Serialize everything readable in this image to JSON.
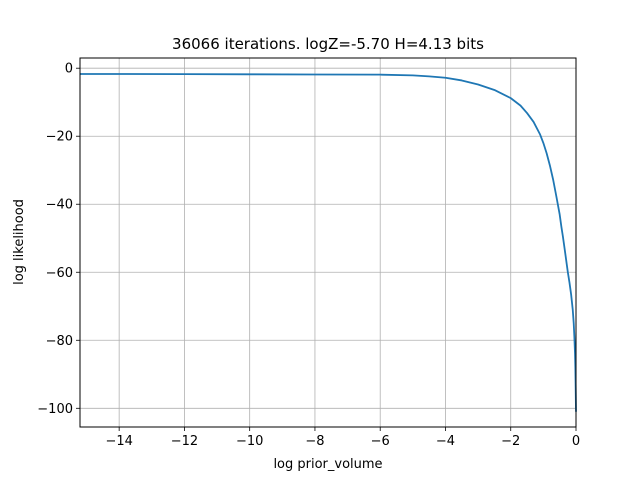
{
  "chart_data": {
    "type": "line",
    "title": "36066 iterations. logZ=-5.70 H=4.13 bits",
    "xlabel": "log prior_volume",
    "ylabel": "log likelihood",
    "xlim": [
      -15.2,
      0
    ],
    "ylim": [
      -105.5,
      3
    ],
    "x_ticks": [
      -14,
      -12,
      -10,
      -8,
      -6,
      -4,
      -2,
      0
    ],
    "y_ticks": [
      0,
      -20,
      -40,
      -60,
      -80,
      -100
    ],
    "x_tick_labels": [
      "−14",
      "−12",
      "−10",
      "−8",
      "−6",
      "−4",
      "−2",
      "0"
    ],
    "y_tick_labels": [
      "0",
      "−20",
      "−40",
      "−60",
      "−80",
      "−100"
    ],
    "grid": true,
    "line_color": "#1f77b4",
    "series": [
      {
        "x": [
          -15.2,
          -14,
          -12,
          -10,
          -8,
          -6,
          -5,
          -4.5,
          -4,
          -3.5,
          -3,
          -2.5,
          -2,
          -1.7,
          -1.5,
          -1.3,
          -1.1,
          -1.0,
          -0.9,
          -0.8,
          -0.7,
          -0.6,
          -0.5,
          -0.45,
          -0.4,
          -0.35,
          -0.3,
          -0.25,
          -0.2,
          -0.15,
          -0.1,
          -0.07,
          -0.05,
          -0.03,
          -0.02,
          -0.01,
          0
        ],
        "y": [
          -1.7,
          -1.7,
          -1.75,
          -1.8,
          -1.85,
          -1.9,
          -2.1,
          -2.4,
          -2.8,
          -3.6,
          -4.8,
          -6.4,
          -8.8,
          -11.0,
          -13.2,
          -15.8,
          -19.5,
          -22.0,
          -25.0,
          -28.6,
          -32.8,
          -37.8,
          -43.0,
          -46.5,
          -49.6,
          -53.0,
          -56.5,
          -60.0,
          -63.0,
          -66.5,
          -71.0,
          -75.0,
          -79.0,
          -84.0,
          -88.0,
          -94.0,
          -101.0
        ]
      }
    ]
  }
}
